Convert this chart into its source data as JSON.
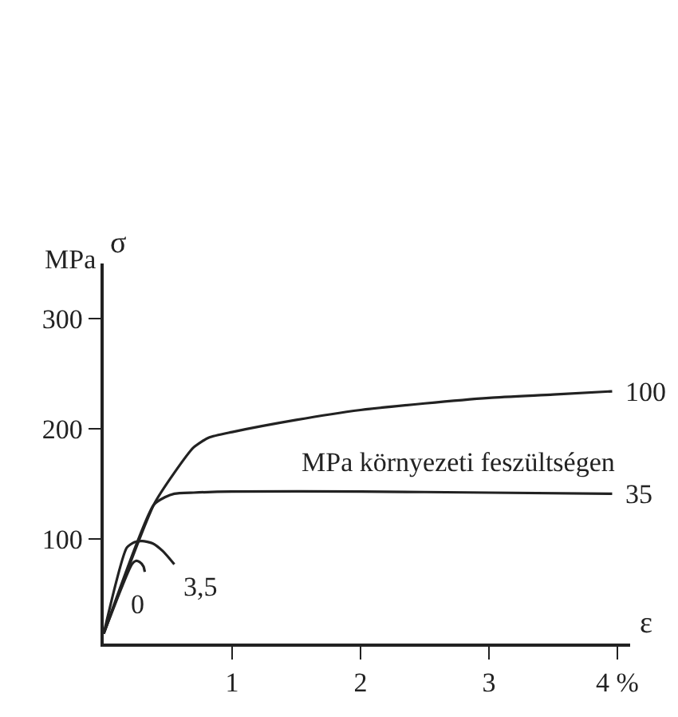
{
  "chart_data": {
    "type": "line",
    "xlabel": "ε",
    "ylabel": "σ",
    "annotations": [
      "MPa",
      "MPa környezeti feszültségen"
    ],
    "xlim": [
      0,
      4.1
    ],
    "ylim": [
      5,
      350
    ],
    "xticks": [
      1,
      2,
      3,
      {
        "value": 4,
        "label": "4 %"
      }
    ],
    "yticks": [
      100,
      200,
      300
    ],
    "legend": false,
    "marker": "none",
    "line_style": "solid",
    "series": [
      {
        "name": "100",
        "color": "#222222",
        "x": [
          0,
          0.39,
          0.55,
          0.7,
          0.82,
          1.0,
          1.5,
          2,
          2.5,
          3,
          3.5,
          3.96
        ],
        "values": [
          14,
          131,
          160,
          183,
          192,
          197,
          208,
          217,
          223,
          228,
          231,
          234
        ]
      },
      {
        "name": "35",
        "color": "#222222",
        "x": [
          0,
          0.39,
          0.48,
          0.55,
          0.7,
          1,
          2,
          3,
          3.96
        ],
        "values": [
          14,
          131,
          138,
          141,
          142,
          143,
          143,
          142,
          141
        ]
      },
      {
        "name": "3,5",
        "color": "#222222",
        "x": [
          0,
          0.18,
          0.24,
          0.3,
          0.38,
          0.46,
          0.55
        ],
        "values": [
          14,
          92,
          97,
          98,
          96,
          89,
          77
        ]
      },
      {
        "name": "0",
        "color": "#222222",
        "x": [
          0,
          0.22,
          0.25,
          0.28,
          0.31,
          0.32
        ],
        "values": [
          14,
          77,
          80,
          79,
          75,
          70
        ]
      }
    ]
  }
}
